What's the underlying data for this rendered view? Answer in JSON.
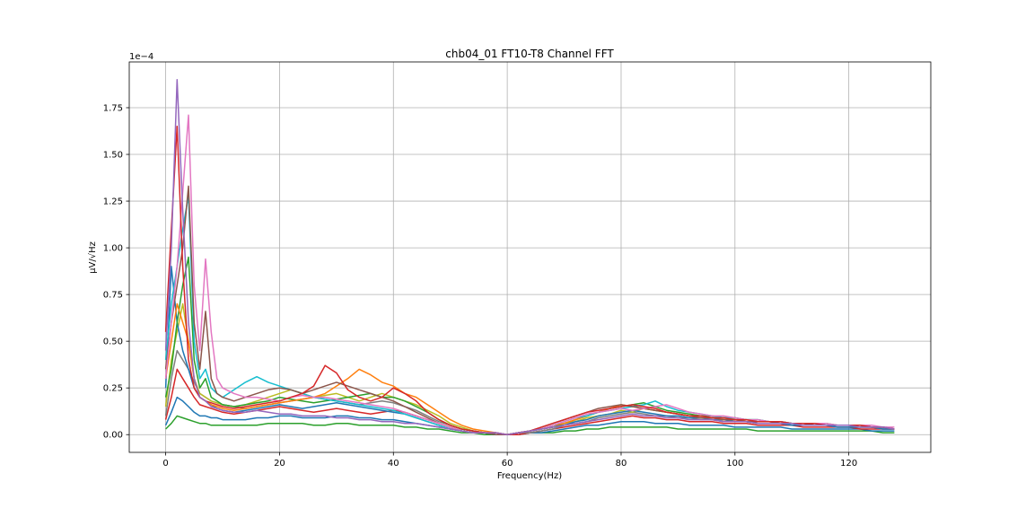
{
  "chart_data": {
    "type": "line",
    "title": "chb04_01 FT10-T8 Channel FFT",
    "xlabel": "Frequency(Hz)",
    "ylabel": "µV/√Hz",
    "offset_text": "1e−4",
    "xlim": [
      -6.4,
      134.4
    ],
    "ylim": [
      -0.095,
      1.995
    ],
    "y_scale_note": "values in units of 1e-4",
    "x_ticks": [
      0,
      20,
      40,
      60,
      80,
      100,
      120
    ],
    "x_tick_labels": [
      "0",
      "20",
      "40",
      "60",
      "80",
      "100",
      "120"
    ],
    "y_ticks": [
      0.0,
      0.25,
      0.5,
      0.75,
      1.0,
      1.25,
      1.5,
      1.75
    ],
    "y_tick_labels": [
      "0.00",
      "0.25",
      "0.50",
      "0.75",
      "1.00",
      "1.25",
      "1.50",
      "1.75"
    ],
    "grid": true,
    "legend": "none",
    "x": [
      0,
      1,
      2,
      3,
      4,
      5,
      6,
      7,
      8,
      9,
      10,
      12,
      14,
      16,
      18,
      20,
      22,
      24,
      26,
      28,
      30,
      32,
      34,
      36,
      38,
      40,
      42,
      44,
      46,
      48,
      50,
      52,
      54,
      56,
      58,
      60,
      62,
      64,
      66,
      68,
      70,
      72,
      74,
      76,
      78,
      80,
      82,
      84,
      86,
      88,
      90,
      92,
      94,
      96,
      98,
      100,
      102,
      104,
      106,
      108,
      110,
      112,
      114,
      116,
      118,
      120,
      122,
      124,
      126,
      128
    ],
    "series": [
      {
        "color": "#9467bd",
        "values": [
          0.45,
          1.0,
          1.9,
          1.2,
          0.6,
          0.3,
          0.2,
          0.18,
          0.15,
          0.14,
          0.13,
          0.12,
          0.12,
          0.13,
          0.12,
          0.11,
          0.11,
          0.1,
          0.1,
          0.1,
          0.09,
          0.09,
          0.08,
          0.08,
          0.07,
          0.07,
          0.06,
          0.06,
          0.05,
          0.04,
          0.03,
          0.02,
          0.01,
          0.01,
          0.01,
          0.0,
          0.01,
          0.02,
          0.03,
          0.04,
          0.05,
          0.06,
          0.07,
          0.08,
          0.09,
          0.1,
          0.11,
          0.1,
          0.1,
          0.09,
          0.09,
          0.08,
          0.08,
          0.08,
          0.07,
          0.07,
          0.07,
          0.06,
          0.06,
          0.06,
          0.06,
          0.05,
          0.05,
          0.05,
          0.05,
          0.05,
          0.04,
          0.04,
          0.04,
          0.03
        ]
      },
      {
        "color": "#d62728",
        "values": [
          0.55,
          1.1,
          1.65,
          0.9,
          0.4,
          0.25,
          0.2,
          0.18,
          0.17,
          0.16,
          0.15,
          0.14,
          0.15,
          0.16,
          0.17,
          0.18,
          0.2,
          0.22,
          0.26,
          0.37,
          0.33,
          0.24,
          0.2,
          0.18,
          0.2,
          0.25,
          0.22,
          0.18,
          0.12,
          0.08,
          0.05,
          0.03,
          0.02,
          0.01,
          0.01,
          0.0,
          0.01,
          0.02,
          0.04,
          0.06,
          0.08,
          0.1,
          0.12,
          0.13,
          0.14,
          0.15,
          0.16,
          0.15,
          0.14,
          0.12,
          0.11,
          0.1,
          0.1,
          0.09,
          0.09,
          0.08,
          0.08,
          0.07,
          0.07,
          0.07,
          0.06,
          0.06,
          0.06,
          0.05,
          0.05,
          0.05,
          0.05,
          0.04,
          0.04,
          0.03
        ]
      },
      {
        "color": "#e377c2",
        "values": [
          0.3,
          0.6,
          0.9,
          1.3,
          1.71,
          0.8,
          0.45,
          0.94,
          0.55,
          0.3,
          0.25,
          0.22,
          0.2,
          0.2,
          0.19,
          0.18,
          0.2,
          0.21,
          0.2,
          0.2,
          0.19,
          0.18,
          0.17,
          0.16,
          0.15,
          0.14,
          0.12,
          0.1,
          0.08,
          0.06,
          0.04,
          0.02,
          0.01,
          0.01,
          0.01,
          0.0,
          0.01,
          0.02,
          0.03,
          0.05,
          0.07,
          0.09,
          0.11,
          0.12,
          0.13,
          0.14,
          0.13,
          0.14,
          0.15,
          0.16,
          0.14,
          0.12,
          0.11,
          0.1,
          0.1,
          0.09,
          0.08,
          0.08,
          0.07,
          0.07,
          0.06,
          0.06,
          0.06,
          0.06,
          0.05,
          0.05,
          0.05,
          0.05,
          0.04,
          0.04
        ]
      },
      {
        "color": "#8c564b",
        "values": [
          0.35,
          0.6,
          0.8,
          1.0,
          1.33,
          0.6,
          0.35,
          0.66,
          0.3,
          0.22,
          0.2,
          0.18,
          0.2,
          0.22,
          0.24,
          0.25,
          0.24,
          0.22,
          0.24,
          0.26,
          0.28,
          0.26,
          0.24,
          0.22,
          0.2,
          0.18,
          0.15,
          0.12,
          0.09,
          0.06,
          0.04,
          0.02,
          0.01,
          0.01,
          0.0,
          0.0,
          0.01,
          0.02,
          0.04,
          0.06,
          0.08,
          0.1,
          0.12,
          0.14,
          0.15,
          0.16,
          0.15,
          0.14,
          0.13,
          0.12,
          0.11,
          0.1,
          0.09,
          0.09,
          0.08,
          0.08,
          0.07,
          0.07,
          0.07,
          0.06,
          0.06,
          0.06,
          0.05,
          0.05,
          0.05,
          0.05,
          0.04,
          0.04,
          0.04,
          0.03
        ]
      },
      {
        "color": "#17becf",
        "values": [
          0.4,
          0.7,
          0.9,
          1.1,
          1.28,
          0.5,
          0.3,
          0.35,
          0.25,
          0.22,
          0.2,
          0.24,
          0.28,
          0.31,
          0.28,
          0.26,
          0.24,
          0.22,
          0.2,
          0.19,
          0.18,
          0.17,
          0.16,
          0.15,
          0.14,
          0.13,
          0.11,
          0.09,
          0.07,
          0.05,
          0.03,
          0.02,
          0.01,
          0.01,
          0.0,
          0.0,
          0.01,
          0.02,
          0.03,
          0.05,
          0.07,
          0.09,
          0.1,
          0.12,
          0.13,
          0.14,
          0.15,
          0.16,
          0.18,
          0.15,
          0.13,
          0.12,
          0.11,
          0.1,
          0.09,
          0.09,
          0.08,
          0.08,
          0.07,
          0.07,
          0.06,
          0.06,
          0.06,
          0.05,
          0.05,
          0.05,
          0.05,
          0.04,
          0.04,
          0.03
        ]
      },
      {
        "color": "#ff7f0e",
        "values": [
          0.3,
          0.5,
          0.7,
          0.6,
          0.5,
          0.3,
          0.2,
          0.18,
          0.16,
          0.15,
          0.14,
          0.13,
          0.14,
          0.15,
          0.16,
          0.17,
          0.18,
          0.19,
          0.2,
          0.22,
          0.26,
          0.3,
          0.35,
          0.32,
          0.28,
          0.26,
          0.22,
          0.2,
          0.16,
          0.12,
          0.08,
          0.05,
          0.03,
          0.02,
          0.01,
          0.0,
          0.01,
          0.02,
          0.03,
          0.05,
          0.06,
          0.08,
          0.1,
          0.12,
          0.14,
          0.16,
          0.15,
          0.14,
          0.13,
          0.12,
          0.11,
          0.1,
          0.09,
          0.09,
          0.08,
          0.08,
          0.07,
          0.07,
          0.07,
          0.06,
          0.06,
          0.06,
          0.05,
          0.05,
          0.05,
          0.05,
          0.05,
          0.04,
          0.04,
          0.03
        ]
      },
      {
        "color": "#2ca02c",
        "values": [
          0.2,
          0.35,
          0.6,
          0.8,
          0.95,
          0.4,
          0.25,
          0.3,
          0.2,
          0.18,
          0.16,
          0.15,
          0.16,
          0.17,
          0.18,
          0.2,
          0.19,
          0.18,
          0.17,
          0.18,
          0.19,
          0.2,
          0.21,
          0.22,
          0.2,
          0.2,
          0.18,
          0.15,
          0.12,
          0.08,
          0.05,
          0.03,
          0.02,
          0.01,
          0.0,
          0.0,
          0.01,
          0.02,
          0.03,
          0.04,
          0.06,
          0.08,
          0.1,
          0.12,
          0.14,
          0.15,
          0.16,
          0.17,
          0.15,
          0.13,
          0.12,
          0.11,
          0.1,
          0.1,
          0.09,
          0.09,
          0.08,
          0.08,
          0.07,
          0.07,
          0.06,
          0.06,
          0.06,
          0.06,
          0.05,
          0.05,
          0.05,
          0.04,
          0.04,
          0.03
        ]
      },
      {
        "color": "#1f77b4",
        "values": [
          0.25,
          0.9,
          0.6,
          0.45,
          0.35,
          0.25,
          0.2,
          0.18,
          0.16,
          0.14,
          0.13,
          0.12,
          0.13,
          0.14,
          0.15,
          0.16,
          0.15,
          0.14,
          0.15,
          0.16,
          0.17,
          0.16,
          0.15,
          0.14,
          0.13,
          0.12,
          0.11,
          0.09,
          0.07,
          0.05,
          0.03,
          0.02,
          0.01,
          0.01,
          0.0,
          0.0,
          0.01,
          0.02,
          0.03,
          0.04,
          0.05,
          0.07,
          0.08,
          0.1,
          0.11,
          0.12,
          0.13,
          0.12,
          0.11,
          0.1,
          0.1,
          0.09,
          0.09,
          0.08,
          0.08,
          0.07,
          0.07,
          0.06,
          0.06,
          0.06,
          0.05,
          0.05,
          0.05,
          0.05,
          0.04,
          0.04,
          0.04,
          0.04,
          0.03,
          0.03
        ]
      },
      {
        "color": "#bcbd22",
        "values": [
          0.15,
          0.4,
          0.55,
          0.7,
          0.5,
          0.3,
          0.22,
          0.2,
          0.18,
          0.17,
          0.16,
          0.15,
          0.16,
          0.18,
          0.2,
          0.22,
          0.24,
          0.22,
          0.2,
          0.21,
          0.22,
          0.2,
          0.18,
          0.2,
          0.22,
          0.2,
          0.18,
          0.16,
          0.13,
          0.1,
          0.06,
          0.04,
          0.02,
          0.01,
          0.01,
          0.0,
          0.01,
          0.02,
          0.03,
          0.04,
          0.06,
          0.07,
          0.09,
          0.1,
          0.11,
          0.13,
          0.12,
          0.14,
          0.13,
          0.12,
          0.11,
          0.1,
          0.1,
          0.09,
          0.09,
          0.08,
          0.08,
          0.07,
          0.07,
          0.07,
          0.06,
          0.06,
          0.06,
          0.05,
          0.05,
          0.05,
          0.05,
          0.04,
          0.04,
          0.03
        ]
      },
      {
        "color": "#7f7f7f",
        "values": [
          0.1,
          0.3,
          0.45,
          0.4,
          0.35,
          0.28,
          0.22,
          0.2,
          0.18,
          0.17,
          0.16,
          0.15,
          0.14,
          0.15,
          0.16,
          0.17,
          0.18,
          0.19,
          0.2,
          0.19,
          0.18,
          0.17,
          0.16,
          0.17,
          0.18,
          0.17,
          0.15,
          0.13,
          0.1,
          0.07,
          0.05,
          0.03,
          0.02,
          0.01,
          0.0,
          0.0,
          0.01,
          0.01,
          0.02,
          0.03,
          0.05,
          0.06,
          0.07,
          0.09,
          0.1,
          0.11,
          0.12,
          0.11,
          0.1,
          0.1,
          0.09,
          0.09,
          0.08,
          0.08,
          0.07,
          0.07,
          0.07,
          0.06,
          0.06,
          0.06,
          0.05,
          0.05,
          0.05,
          0.05,
          0.04,
          0.04,
          0.04,
          0.04,
          0.03,
          0.03
        ]
      },
      {
        "color": "#d62728",
        "values": [
          0.08,
          0.2,
          0.35,
          0.3,
          0.25,
          0.2,
          0.16,
          0.15,
          0.14,
          0.13,
          0.12,
          0.11,
          0.12,
          0.13,
          0.14,
          0.15,
          0.14,
          0.13,
          0.12,
          0.13,
          0.14,
          0.13,
          0.12,
          0.11,
          0.12,
          0.13,
          0.12,
          0.1,
          0.08,
          0.06,
          0.04,
          0.02,
          0.01,
          0.01,
          0.0,
          0.0,
          0.0,
          0.01,
          0.02,
          0.03,
          0.04,
          0.05,
          0.06,
          0.07,
          0.08,
          0.09,
          0.1,
          0.09,
          0.09,
          0.08,
          0.08,
          0.07,
          0.07,
          0.07,
          0.06,
          0.06,
          0.06,
          0.05,
          0.05,
          0.05,
          0.05,
          0.04,
          0.04,
          0.04,
          0.04,
          0.04,
          0.03,
          0.03,
          0.03,
          0.03
        ]
      },
      {
        "color": "#1f77b4",
        "values": [
          0.05,
          0.12,
          0.2,
          0.18,
          0.15,
          0.12,
          0.1,
          0.1,
          0.09,
          0.09,
          0.08,
          0.08,
          0.08,
          0.09,
          0.09,
          0.1,
          0.1,
          0.09,
          0.09,
          0.09,
          0.1,
          0.1,
          0.09,
          0.09,
          0.08,
          0.08,
          0.07,
          0.06,
          0.05,
          0.04,
          0.03,
          0.02,
          0.01,
          0.01,
          0.0,
          0.0,
          0.0,
          0.01,
          0.01,
          0.02,
          0.03,
          0.04,
          0.05,
          0.05,
          0.06,
          0.07,
          0.07,
          0.07,
          0.06,
          0.06,
          0.06,
          0.05,
          0.05,
          0.05,
          0.05,
          0.04,
          0.04,
          0.04,
          0.04,
          0.04,
          0.03,
          0.03,
          0.03,
          0.03,
          0.03,
          0.03,
          0.03,
          0.02,
          0.02,
          0.02
        ]
      },
      {
        "color": "#2ca02c",
        "values": [
          0.03,
          0.06,
          0.1,
          0.09,
          0.08,
          0.07,
          0.06,
          0.06,
          0.05,
          0.05,
          0.05,
          0.05,
          0.05,
          0.05,
          0.06,
          0.06,
          0.06,
          0.06,
          0.05,
          0.05,
          0.06,
          0.06,
          0.05,
          0.05,
          0.05,
          0.05,
          0.04,
          0.04,
          0.03,
          0.03,
          0.02,
          0.01,
          0.01,
          0.0,
          0.0,
          0.0,
          0.0,
          0.01,
          0.01,
          0.01,
          0.02,
          0.02,
          0.03,
          0.03,
          0.04,
          0.04,
          0.04,
          0.04,
          0.04,
          0.04,
          0.03,
          0.03,
          0.03,
          0.03,
          0.03,
          0.03,
          0.03,
          0.02,
          0.02,
          0.02,
          0.02,
          0.02,
          0.02,
          0.02,
          0.02,
          0.02,
          0.02,
          0.02,
          0.01,
          0.01
        ]
      }
    ]
  }
}
